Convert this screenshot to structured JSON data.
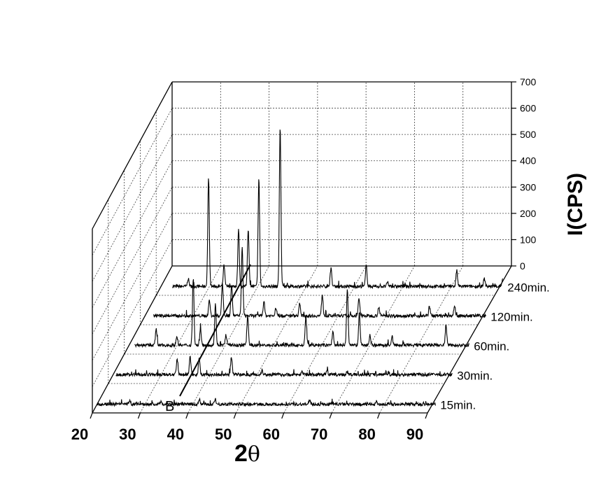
{
  "chart_data": {
    "type": "line",
    "style": "3d-waterfall",
    "xlabel_main": "2",
    "xlabel_symbol": "θ",
    "ylabel": "I(CPS)",
    "x_range": [
      20,
      90
    ],
    "x_ticks": [
      "20",
      "30",
      "40",
      "50",
      "60",
      "70",
      "80",
      "90"
    ],
    "y_range": [
      0,
      700
    ],
    "y_ticks": [
      "0",
      "100",
      "200",
      "300",
      "400",
      "500",
      "600",
      "700"
    ],
    "grid": true,
    "annotation": "B",
    "series": [
      {
        "name": "15min.",
        "baseline": 5,
        "peaks": [
          [
            27.0,
            12
          ],
          [
            33.5,
            10
          ],
          [
            41.5,
            18
          ],
          [
            44.8,
            22
          ],
          [
            64.5,
            14
          ],
          [
            78.5,
            10
          ]
        ]
      },
      {
        "name": "30min.",
        "baseline": 6,
        "peaks": [
          [
            33.5,
            55
          ],
          [
            36.2,
            70
          ],
          [
            38.1,
            65
          ],
          [
            44.8,
            70
          ],
          [
            51.2,
            18
          ],
          [
            59.5,
            10
          ],
          [
            64.7,
            20
          ],
          [
            68.9,
            12
          ],
          [
            77.5,
            8
          ]
        ]
      },
      {
        "name": "60min.",
        "baseline": 6,
        "peaks": [
          [
            25.8,
            60
          ],
          [
            30.1,
            35
          ],
          [
            33.5,
            255
          ],
          [
            35.0,
            60
          ],
          [
            38.1,
            155
          ],
          [
            40.3,
            40
          ],
          [
            44.8,
            115
          ],
          [
            56.9,
            105
          ],
          [
            62.5,
            50
          ],
          [
            65.5,
            215
          ],
          [
            68.0,
            120
          ],
          [
            70.2,
            40
          ],
          [
            74.8,
            35
          ],
          [
            86.0,
            75
          ]
        ]
      },
      {
        "name": "120min.",
        "baseline": 6,
        "peaks": [
          [
            33.5,
            60
          ],
          [
            36.2,
            125
          ],
          [
            38.1,
            120
          ],
          [
            40.3,
            260
          ],
          [
            44.8,
            55
          ],
          [
            47.3,
            30
          ],
          [
            52.2,
            45
          ],
          [
            56.9,
            80
          ],
          [
            64.5,
            65
          ],
          [
            68.6,
            35
          ],
          [
            79.1,
            35
          ],
          [
            84.3,
            40
          ]
        ]
      },
      {
        "name": "240min.",
        "baseline": 6,
        "peaks": [
          [
            25.8,
            30
          ],
          [
            30.0,
            410
          ],
          [
            33.2,
            80
          ],
          [
            36.2,
            215
          ],
          [
            38.2,
            220
          ],
          [
            40.4,
            410
          ],
          [
            44.8,
            610
          ],
          [
            55.3,
            70
          ],
          [
            62.6,
            80
          ],
          [
            67.0,
            15
          ],
          [
            81.3,
            60
          ],
          [
            87.0,
            30
          ],
          [
            90.8,
            25
          ]
        ]
      }
    ]
  }
}
